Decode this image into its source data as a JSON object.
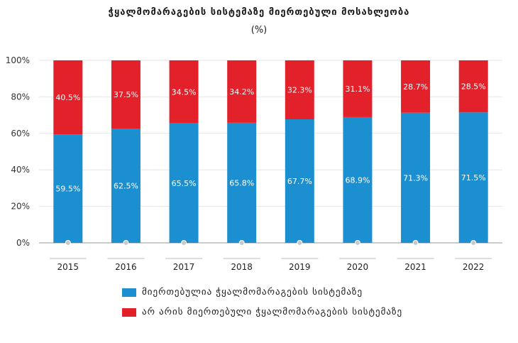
{
  "colors": {
    "connected": "#1b8fcf",
    "not_connected": "#e3212b"
  },
  "chart_data": {
    "type": "bar",
    "stacked": true,
    "title": "ჭყალმომარაგების სისტემაზე მიერთებული მოსახლეობა",
    "subtitle": "(%)",
    "categories": [
      "2015",
      "2016",
      "2017",
      "2018",
      "2019",
      "2020",
      "2021",
      "2022"
    ],
    "ylim": [
      0,
      100
    ],
    "yticks": [
      "0%",
      "20%",
      "40%",
      "60%",
      "80%",
      "100%"
    ],
    "series": [
      {
        "name": "მიერთებულია ჭყალმომარაგების სისტემაზე",
        "values": [
          59.5,
          62.5,
          65.5,
          65.8,
          67.7,
          68.9,
          71.3,
          71.5
        ],
        "labels": [
          "59.5%",
          "62.5%",
          "65.5%",
          "65.8%",
          "67.7%",
          "68.9%",
          "71.3%",
          "71.5%"
        ]
      },
      {
        "name": "არ არის მიერთებული ჭყალმომარაგების სისტემაზე",
        "values": [
          40.5,
          37.5,
          34.5,
          34.2,
          32.3,
          31.1,
          28.7,
          28.5
        ],
        "labels": [
          "40.5%",
          "37.5%",
          "34.5%",
          "34.2%",
          "32.3%",
          "31.1%",
          "28.7%",
          "28.5%"
        ]
      }
    ]
  }
}
